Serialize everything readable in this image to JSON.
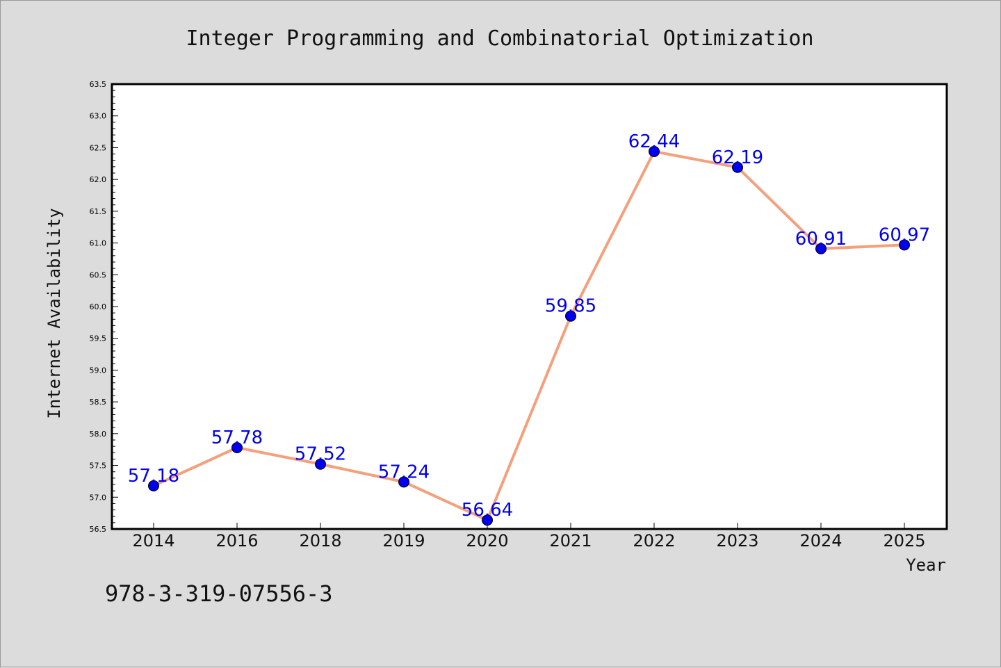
{
  "chart_data": {
    "type": "line",
    "title": "Integer Programming and Combinatorial Optimization",
    "xlabel": "Year",
    "ylabel": "Internet Availability",
    "categories": [
      "2014",
      "2016",
      "2018",
      "2019",
      "2020",
      "2021",
      "2022",
      "2023",
      "2024",
      "2025"
    ],
    "series": [
      {
        "values": [
          57.18,
          57.78,
          57.52,
          57.24,
          56.64,
          59.85,
          62.44,
          62.19,
          60.91,
          60.97
        ],
        "line_color": "#f4a07c",
        "marker_color": "#0000ee"
      }
    ],
    "data_labels": [
      "57.18",
      "57.78",
      "57.52",
      "57.24",
      "56.64",
      "59.85",
      "62.44",
      "62.19",
      "60.91",
      "60.97"
    ],
    "data_label_color": "#0000ee",
    "ylim": [
      56.5,
      63.5
    ],
    "yticks": [
      "56.5",
      "57.0",
      "57.5",
      "58.0",
      "58.5",
      "59.0",
      "59.5",
      "60.0",
      "60.5",
      "61.0",
      "61.5",
      "62.0",
      "62.5",
      "63.0",
      "63.5"
    ],
    "grid": false,
    "legend": "none"
  },
  "footer": {
    "isbn": "978-3-319-07556-3"
  }
}
